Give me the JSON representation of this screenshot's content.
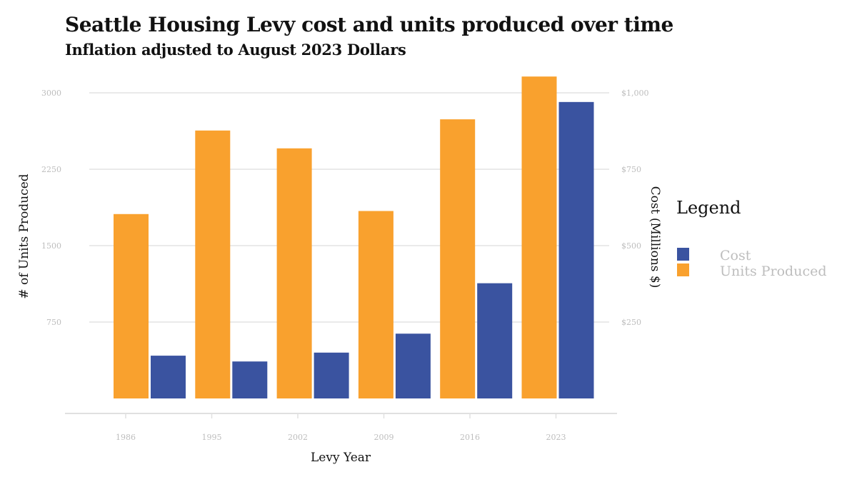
{
  "chart_data": {
    "type": "bar",
    "title": "Seattle Housing Levy cost and units produced over time",
    "subtitle": "Inflation adjusted to August 2023 Dollars",
    "xlabel": "Levy Year",
    "ylabel_left": "# of Units Produced",
    "ylabel_right": "Cost (Millions $)",
    "categories": [
      "1986",
      "1995",
      "2002",
      "2009",
      "2016",
      "2023"
    ],
    "left_axis": {
      "ylim": [
        0,
        3000
      ],
      "ticks": [
        750,
        1500,
        2250,
        3000
      ],
      "tick_labels": [
        "750",
        "1500",
        "2250",
        "3000"
      ]
    },
    "right_axis": {
      "ylim": [
        0,
        1000
      ],
      "ticks": [
        250,
        500,
        750,
        1000
      ],
      "tick_labels": [
        "$250",
        "$500",
        "$750",
        "$1,000"
      ]
    },
    "series": [
      {
        "name": "Units Produced",
        "axis": "left",
        "color": "#F9A12E",
        "values": [
          1810,
          2630,
          2455,
          1840,
          2740,
          3160
        ]
      },
      {
        "name": "Cost",
        "axis": "right",
        "color": "#3A53A0",
        "values": [
          140,
          121,
          150,
          212,
          377,
          970
        ]
      }
    ],
    "grid": true,
    "legend": {
      "title": "Legend",
      "position": "right",
      "items": [
        "Cost",
        "Units Produced"
      ]
    }
  }
}
